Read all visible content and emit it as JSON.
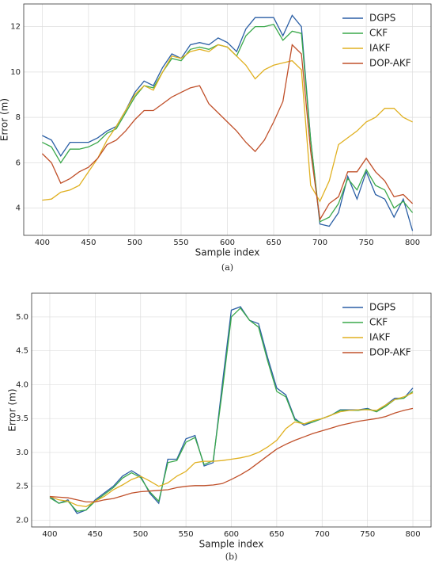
{
  "chart_data": [
    {
      "type": "line",
      "caption": "(a)",
      "xlabel": "Sample index",
      "ylabel": "Error (m)",
      "x": [
        400,
        410,
        420,
        430,
        440,
        450,
        460,
        470,
        480,
        490,
        500,
        510,
        520,
        530,
        540,
        550,
        560,
        570,
        580,
        590,
        600,
        610,
        620,
        630,
        640,
        650,
        660,
        670,
        680,
        690,
        700,
        710,
        720,
        730,
        740,
        750,
        760,
        770,
        780,
        790,
        800
      ],
      "series": [
        {
          "name": "DGPS",
          "color": "#2b5fa5",
          "values": [
            7.2,
            7.0,
            6.3,
            6.9,
            6.9,
            6.9,
            7.1,
            7.4,
            7.6,
            8.3,
            9.1,
            9.6,
            9.4,
            10.2,
            10.8,
            10.6,
            11.2,
            11.3,
            11.2,
            11.5,
            11.3,
            10.9,
            11.9,
            12.4,
            12.4,
            12.4,
            11.6,
            12.5,
            12.0,
            7.0,
            3.3,
            3.2,
            3.8,
            5.4,
            4.4,
            5.6,
            4.6,
            4.4,
            3.6,
            4.4,
            3.0
          ]
        },
        {
          "name": "CKF",
          "color": "#3aa84a",
          "values": [
            6.9,
            6.7,
            6.0,
            6.6,
            6.6,
            6.7,
            6.9,
            7.3,
            7.5,
            8.2,
            8.9,
            9.4,
            9.3,
            10.0,
            10.6,
            10.5,
            11.0,
            11.1,
            11.0,
            11.2,
            11.1,
            10.7,
            11.6,
            12.0,
            12.0,
            12.1,
            11.4,
            11.8,
            11.7,
            7.0,
            3.4,
            3.6,
            4.2,
            5.3,
            4.8,
            5.7,
            5.0,
            4.8,
            4.0,
            4.3,
            3.8
          ]
        },
        {
          "name": "IAKF",
          "color": "#e0b020",
          "values": [
            4.35,
            4.4,
            4.7,
            4.8,
            5.0,
            5.6,
            6.2,
            7.0,
            7.6,
            8.3,
            9.0,
            9.4,
            9.2,
            10.0,
            10.7,
            10.6,
            10.9,
            11.0,
            10.9,
            11.2,
            11.1,
            10.7,
            10.3,
            9.7,
            10.1,
            10.3,
            10.4,
            10.5,
            10.1,
            5.0,
            4.3,
            5.2,
            6.8,
            7.1,
            7.4,
            7.8,
            8.0,
            8.4,
            8.4,
            8.0,
            7.8
          ]
        },
        {
          "name": "DOP-AKF",
          "color": "#c0502a",
          "values": [
            6.4,
            6.0,
            5.1,
            5.3,
            5.6,
            5.8,
            6.2,
            6.8,
            7.0,
            7.4,
            7.9,
            8.3,
            8.3,
            8.6,
            8.9,
            9.1,
            9.3,
            9.4,
            8.6,
            8.2,
            7.8,
            7.4,
            6.9,
            6.5,
            7.0,
            7.8,
            8.7,
            11.2,
            10.8,
            6.5,
            3.5,
            4.2,
            4.5,
            5.6,
            5.6,
            6.2,
            5.6,
            5.2,
            4.5,
            4.6,
            4.2
          ]
        }
      ],
      "xlim": [
        380,
        820
      ],
      "xticks": [
        400,
        450,
        500,
        550,
        600,
        650,
        700,
        750,
        800
      ],
      "ylim": [
        2.8,
        13.0
      ],
      "yticks": [
        4,
        6,
        8,
        10,
        12
      ],
      "grid": true,
      "legend": "upper right"
    },
    {
      "type": "line",
      "caption": "(b)",
      "xlabel": "Sample index",
      "ylabel": "Error (m)",
      "x": [
        400,
        410,
        420,
        430,
        440,
        450,
        460,
        470,
        480,
        490,
        500,
        510,
        520,
        530,
        540,
        550,
        560,
        570,
        580,
        590,
        600,
        610,
        620,
        630,
        640,
        650,
        660,
        670,
        680,
        690,
        700,
        710,
        720,
        730,
        740,
        750,
        760,
        770,
        780,
        790,
        800
      ],
      "series": [
        {
          "name": "DGPS",
          "color": "#2b5fa5",
          "values": [
            2.35,
            2.25,
            2.3,
            2.1,
            2.15,
            2.3,
            2.4,
            2.5,
            2.65,
            2.73,
            2.65,
            2.4,
            2.25,
            2.9,
            2.9,
            3.2,
            3.25,
            2.8,
            2.85,
            4.0,
            5.1,
            5.15,
            4.95,
            4.9,
            4.4,
            3.95,
            3.85,
            3.5,
            3.4,
            3.45,
            3.5,
            3.55,
            3.63,
            3.63,
            3.63,
            3.65,
            3.6,
            3.7,
            3.8,
            3.8,
            3.95
          ]
        },
        {
          "name": "CKF",
          "color": "#3aa84a",
          "values": [
            2.33,
            2.25,
            2.28,
            2.13,
            2.15,
            2.28,
            2.38,
            2.48,
            2.62,
            2.7,
            2.63,
            2.42,
            2.28,
            2.85,
            2.88,
            3.15,
            3.22,
            2.82,
            2.88,
            3.9,
            5.0,
            5.13,
            4.95,
            4.85,
            4.35,
            3.9,
            3.82,
            3.48,
            3.42,
            3.45,
            3.5,
            3.55,
            3.62,
            3.62,
            3.62,
            3.64,
            3.6,
            3.68,
            3.78,
            3.8,
            3.9
          ]
        },
        {
          "name": "IAKF",
          "color": "#e0b020",
          "values": [
            2.35,
            2.3,
            2.28,
            2.22,
            2.2,
            2.28,
            2.35,
            2.45,
            2.52,
            2.6,
            2.65,
            2.58,
            2.5,
            2.55,
            2.65,
            2.72,
            2.85,
            2.87,
            2.87,
            2.88,
            2.9,
            2.92,
            2.95,
            3.0,
            3.08,
            3.18,
            3.35,
            3.45,
            3.42,
            3.47,
            3.5,
            3.55,
            3.6,
            3.62,
            3.63,
            3.63,
            3.62,
            3.7,
            3.78,
            3.82,
            3.88
          ]
        },
        {
          "name": "DOP-AKF",
          "color": "#c0502a",
          "values": [
            2.35,
            2.34,
            2.33,
            2.3,
            2.27,
            2.27,
            2.3,
            2.32,
            2.36,
            2.4,
            2.42,
            2.43,
            2.44,
            2.45,
            2.48,
            2.5,
            2.51,
            2.51,
            2.52,
            2.54,
            2.6,
            2.67,
            2.75,
            2.85,
            2.95,
            3.05,
            3.12,
            3.18,
            3.23,
            3.28,
            3.32,
            3.36,
            3.4,
            3.43,
            3.46,
            3.48,
            3.5,
            3.53,
            3.58,
            3.62,
            3.65
          ]
        }
      ],
      "xlim": [
        380,
        820
      ],
      "xticks": [
        400,
        450,
        500,
        550,
        600,
        650,
        700,
        750,
        800
      ],
      "ylim": [
        1.9,
        5.35
      ],
      "yticks": [
        {
          "value": 2,
          "label": "2.0"
        },
        2.5,
        {
          "value": 3,
          "label": "3.0"
        },
        3.5,
        {
          "value": 4,
          "label": "4.0"
        },
        4.5,
        {
          "value": 5,
          "label": "5.0"
        }
      ],
      "grid": true,
      "legend": "upper right"
    }
  ]
}
